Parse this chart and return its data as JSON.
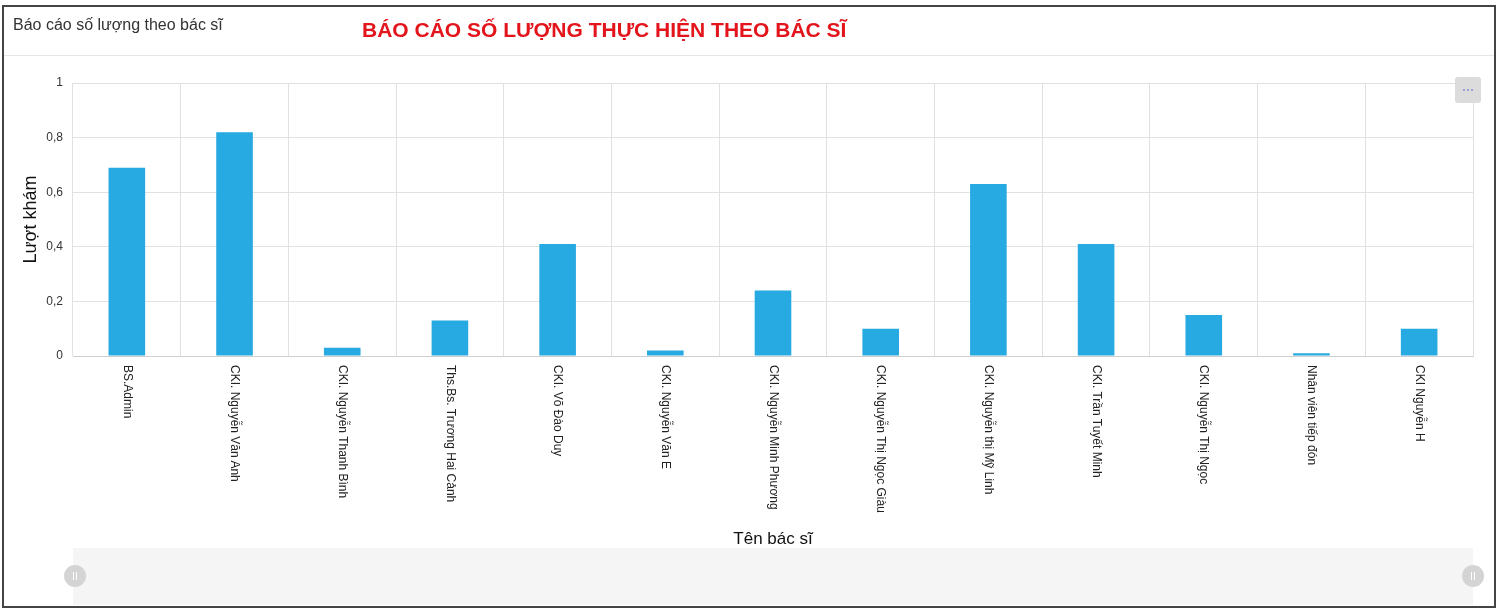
{
  "chart_data": {
    "type": "bar",
    "title": "Báo cáo số lượng theo bác sĩ",
    "subtitle": "BÁO CÁO SỐ LƯỢNG THỰC HIỆN THEO BÁC SĨ",
    "xlabel": "Tên bác sĩ",
    "ylabel": "Lượt khám",
    "categories": [
      "BS.Admin",
      "CKI. Nguyễn Văn Anh",
      "CKI. Nguyễn Thanh Bình",
      "Ths.Bs. Trương Hai Cảnh",
      "CKI. Võ Đào Duy",
      "CKI. Nguyễn Văn E",
      "CKI. Nguyễn Minh Phương",
      "CKI. Nguyễn Thị Ngọc Giàu",
      "CKI. Nguyễn thị Mỹ Linh",
      "CKI. Trần Tuyết Minh",
      "CKI. Nguyễn Thị Ngọc",
      "Nhân viên tiếp đón",
      "CKI Nguyễn H"
    ],
    "values": [
      0.69,
      0.82,
      0.03,
      0.13,
      0.41,
      0.02,
      0.24,
      0.1,
      0.63,
      0.41,
      0.15,
      0.01,
      0.1
    ],
    "color": "#27a9e1",
    "ylim": [
      0,
      1
    ],
    "yticks": [
      0,
      {
        "value": 0.2,
        "label": "0,2"
      },
      {
        "value": 0.4,
        "label": "0,4"
      },
      {
        "value": 0.6,
        "label": "0,6"
      },
      {
        "value": 0.8,
        "label": "0,8"
      },
      1
    ],
    "grid": true
  }
}
